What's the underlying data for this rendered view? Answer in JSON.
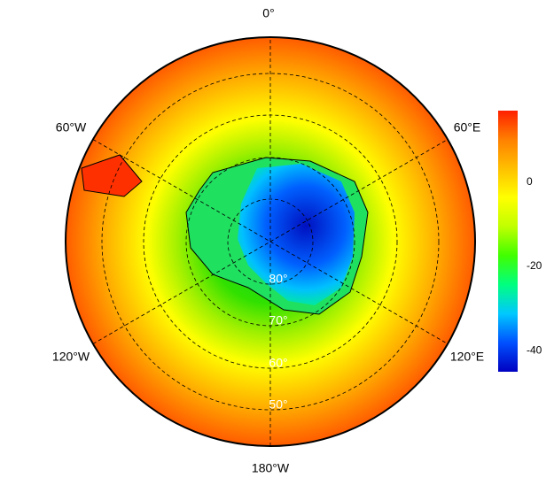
{
  "map": {
    "lon_labels": [
      "0°",
      "60°E",
      "120°E",
      "180°W",
      "120°W",
      "60°W"
    ],
    "lat_labels": [
      "80°",
      "70°",
      "60°",
      "50°"
    ]
  },
  "colorbar": {
    "lim": [
      -45,
      17
    ],
    "ticks": [
      0,
      -20,
      -40
    ],
    "colors": [
      "#0000c0",
      "#0050ff",
      "#00c8ff",
      "#00ff80",
      "#40ff00",
      "#c0ff00",
      "#ffff00",
      "#ffc000",
      "#ff8000",
      "#ff2000"
    ]
  }
}
